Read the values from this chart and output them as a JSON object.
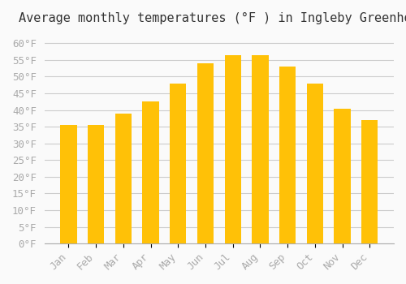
{
  "title": "Average monthly temperatures (°F ) in Ingleby Greenhow",
  "months": [
    "Jan",
    "Feb",
    "Mar",
    "Apr",
    "May",
    "Jun",
    "Jul",
    "Aug",
    "Sep",
    "Oct",
    "Nov",
    "Dec"
  ],
  "values": [
    35.5,
    35.5,
    39.0,
    42.5,
    48.0,
    54.0,
    56.5,
    56.5,
    53.0,
    48.0,
    40.5,
    37.0
  ],
  "bar_color_top": "#FFC107",
  "bar_color_bottom": "#FFB300",
  "ylim": [
    0,
    63
  ],
  "yticks": [
    0,
    5,
    10,
    15,
    20,
    25,
    30,
    35,
    40,
    45,
    50,
    55,
    60
  ],
  "background_color": "#FAFAFA",
  "grid_color": "#CCCCCC",
  "title_fontsize": 11,
  "tick_fontsize": 9,
  "tick_font_color": "#AAAAAA"
}
